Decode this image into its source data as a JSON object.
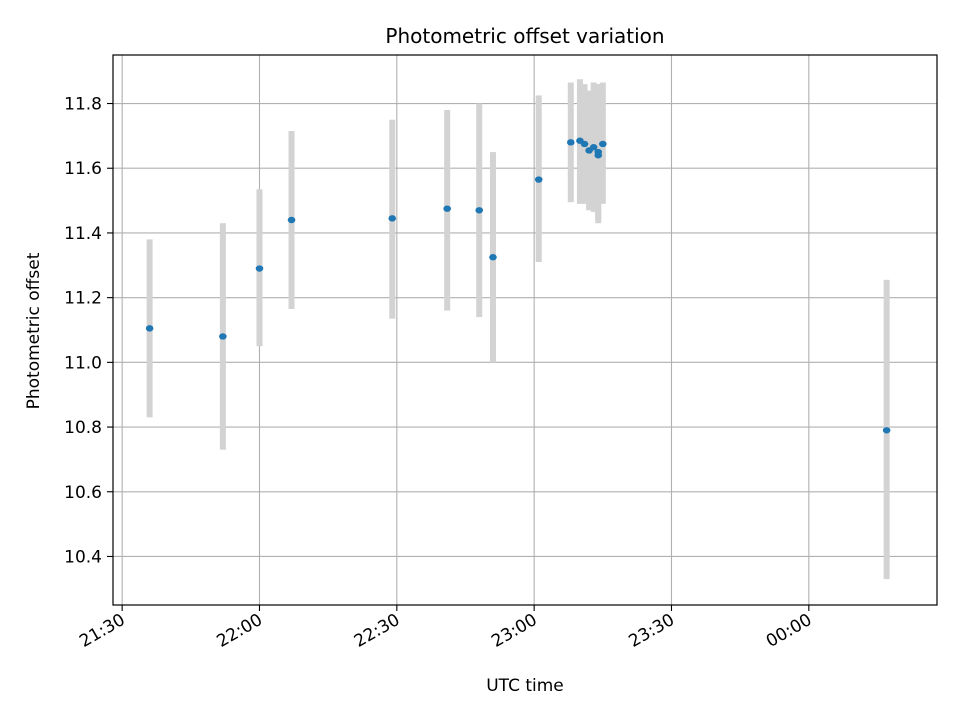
{
  "chart_data": {
    "type": "scatter",
    "title": "Photometric offset variation",
    "xlabel": "UTC time",
    "ylabel": "Photometric offset",
    "x_axis_type": "time",
    "xlim": [
      "21:28",
      "00:28"
    ],
    "ylim": [
      10.25,
      11.95
    ],
    "x_ticks": [
      "21:30",
      "22:00",
      "22:30",
      "23:00",
      "23:30",
      "00:00"
    ],
    "y_ticks": [
      "10.4",
      "10.6",
      "10.8",
      "11.0",
      "11.2",
      "11.4",
      "11.6",
      "11.8"
    ],
    "y_tick_values": [
      10.4,
      10.6,
      10.8,
      11.0,
      11.2,
      11.4,
      11.6,
      11.8
    ],
    "grid": true,
    "legend": "none",
    "series": [
      {
        "points": [
          {
            "x": "21:36",
            "y": 11.105,
            "err_low": 10.83,
            "err_high": 11.38
          },
          {
            "x": "21:52",
            "y": 11.08,
            "err_low": 10.73,
            "err_high": 11.43
          },
          {
            "x": "22:00",
            "y": 11.29,
            "err_low": 11.05,
            "err_high": 11.535
          },
          {
            "x": "22:07",
            "y": 11.44,
            "err_low": 11.165,
            "err_high": 11.715
          },
          {
            "x": "22:29",
            "y": 11.445,
            "err_low": 11.135,
            "err_high": 11.75
          },
          {
            "x": "22:41",
            "y": 11.475,
            "err_low": 11.16,
            "err_high": 11.78
          },
          {
            "x": "22:48",
            "y": 11.47,
            "err_low": 11.14,
            "err_high": 11.8
          },
          {
            "x": "22:51",
            "y": 11.325,
            "err_low": 11.0,
            "err_high": 11.65
          },
          {
            "x": "23:01",
            "y": 11.565,
            "err_low": 11.31,
            "err_high": 11.825
          },
          {
            "x": "23:08",
            "y": 11.68,
            "err_low": 11.495,
            "err_high": 11.865
          },
          {
            "x": "23:10",
            "y": 11.685,
            "err_low": 11.49,
            "err_high": 11.875
          },
          {
            "x": "23:11",
            "y": 11.675,
            "err_low": 11.49,
            "err_high": 11.86
          },
          {
            "x": "23:12",
            "y": 11.655,
            "err_low": 11.47,
            "err_high": 11.84
          },
          {
            "x": "23:13",
            "y": 11.665,
            "err_low": 11.465,
            "err_high": 11.865
          },
          {
            "x": "23:14",
            "y": 11.65,
            "err_low": 11.44,
            "err_high": 11.86
          },
          {
            "x": "23:14",
            "y": 11.64,
            "err_low": 11.43,
            "err_high": 11.86
          },
          {
            "x": "23:15",
            "y": 11.675,
            "err_low": 11.49,
            "err_high": 11.865
          },
          {
            "x": "00:17",
            "y": 10.79,
            "err_low": 10.33,
            "err_high": 11.255
          }
        ]
      }
    ]
  },
  "colors": {
    "point": "#1f77b4",
    "errorbar": "#d3d3d3",
    "grid": "#b0b0b0",
    "axes": "#000000"
  }
}
